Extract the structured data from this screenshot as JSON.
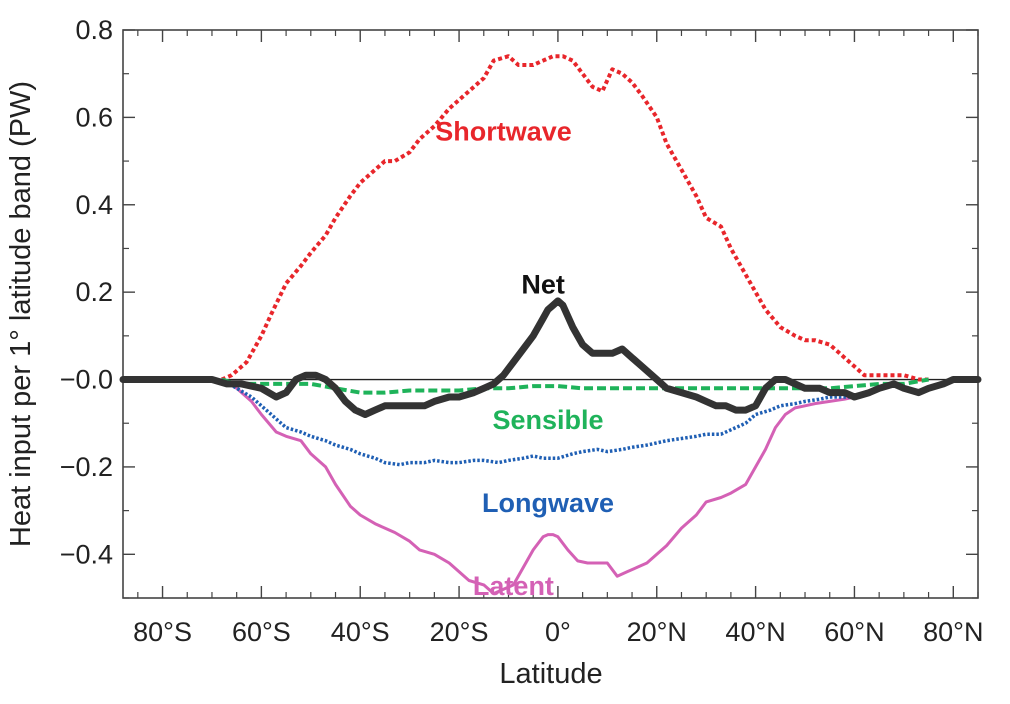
{
  "chart_data": {
    "type": "line",
    "xlabel": "Latitude",
    "ylabel": "Heat input per 1° latitude band (PW)",
    "xlim": [
      -88,
      85
    ],
    "ylim": [
      -0.5,
      0.8
    ],
    "x_ticks": [
      -80,
      -60,
      -40,
      -20,
      0,
      20,
      40,
      60,
      80
    ],
    "x_tick_labels": [
      "80°S",
      "60°S",
      "40°S",
      "20°S",
      "0°",
      "20°N",
      "40°N",
      "60°N",
      "80°N"
    ],
    "y_ticks": [
      -0.4,
      -0.2,
      0.0,
      0.2,
      0.4,
      0.6,
      0.8
    ],
    "y_tick_labels": [
      "−0.4",
      "−0.2",
      "−0.0",
      "0.2",
      "0.4",
      "0.6",
      "0.8"
    ],
    "zero_line": true,
    "grid": false,
    "series": [
      {
        "name": "Shortwave",
        "color": "#e8262b",
        "style": "dotted",
        "label_at": [
          -11,
          0.57
        ],
        "x": [
          -68,
          -66,
          -63,
          -60,
          -58,
          -55,
          -52,
          -50,
          -47,
          -45,
          -42,
          -40,
          -38,
          -35,
          -33,
          -30,
          -28,
          -25,
          -22,
          -20,
          -18,
          -15,
          -13,
          -10,
          -8,
          -5,
          -3,
          -1,
          1,
          3,
          5,
          7,
          9,
          11,
          13,
          15,
          17,
          20,
          22,
          25,
          28,
          30,
          33,
          35,
          38,
          40,
          42,
          45,
          48,
          50,
          52,
          55,
          57,
          60,
          62,
          65,
          68,
          70,
          73,
          75
        ],
        "y": [
          0.0,
          0.01,
          0.04,
          0.1,
          0.15,
          0.22,
          0.26,
          0.29,
          0.33,
          0.37,
          0.42,
          0.45,
          0.47,
          0.5,
          0.5,
          0.52,
          0.55,
          0.58,
          0.62,
          0.64,
          0.66,
          0.69,
          0.73,
          0.74,
          0.72,
          0.72,
          0.73,
          0.74,
          0.74,
          0.73,
          0.7,
          0.67,
          0.66,
          0.71,
          0.7,
          0.68,
          0.65,
          0.6,
          0.54,
          0.48,
          0.42,
          0.37,
          0.35,
          0.3,
          0.24,
          0.2,
          0.16,
          0.12,
          0.1,
          0.09,
          0.09,
          0.08,
          0.06,
          0.03,
          0.01,
          0.01,
          0.01,
          0.01,
          0.0,
          0.0
        ]
      },
      {
        "name": "Net",
        "color": "#333333",
        "style": "solid",
        "label_at": [
          -3,
          0.22
        ],
        "x": [
          -88,
          -80,
          -70,
          -67,
          -64,
          -60,
          -57,
          -55,
          -53,
          -51,
          -49,
          -47,
          -45,
          -43,
          -41,
          -39,
          -37,
          -35,
          -33,
          -31,
          -29,
          -27,
          -25,
          -22,
          -20,
          -17,
          -15,
          -13,
          -11,
          -9,
          -7,
          -5,
          -3,
          -2,
          -1,
          0,
          1,
          3,
          5,
          7,
          9,
          11,
          13,
          15,
          17,
          20,
          22,
          25,
          28,
          30,
          32,
          34,
          36,
          38,
          40,
          42,
          44,
          46,
          48,
          50,
          53,
          55,
          58,
          60,
          63,
          65,
          68,
          70,
          73,
          75,
          78,
          80,
          85
        ],
        "y": [
          0.0,
          0.0,
          0.0,
          -0.01,
          -0.01,
          -0.02,
          -0.04,
          -0.03,
          0.0,
          0.01,
          0.01,
          0.0,
          -0.02,
          -0.05,
          -0.07,
          -0.08,
          -0.07,
          -0.06,
          -0.06,
          -0.06,
          -0.06,
          -0.06,
          -0.05,
          -0.04,
          -0.04,
          -0.03,
          -0.02,
          -0.01,
          0.01,
          0.04,
          0.07,
          0.1,
          0.14,
          0.16,
          0.17,
          0.18,
          0.17,
          0.12,
          0.08,
          0.06,
          0.06,
          0.06,
          0.07,
          0.05,
          0.03,
          0.0,
          -0.02,
          -0.03,
          -0.04,
          -0.05,
          -0.06,
          -0.06,
          -0.07,
          -0.07,
          -0.06,
          -0.02,
          0.0,
          0.0,
          -0.01,
          -0.02,
          -0.02,
          -0.03,
          -0.03,
          -0.04,
          -0.03,
          -0.02,
          -0.01,
          -0.02,
          -0.03,
          -0.02,
          -0.01,
          0.0,
          0.0
        ]
      },
      {
        "name": "Sensible",
        "color": "#1fb35a",
        "style": "dashed",
        "label_at": [
          -2,
          -0.09
        ],
        "x": [
          -68,
          -65,
          -60,
          -55,
          -50,
          -45,
          -40,
          -35,
          -30,
          -25,
          -20,
          -15,
          -10,
          -5,
          0,
          5,
          10,
          15,
          20,
          25,
          30,
          35,
          40,
          45,
          50,
          55,
          60,
          65,
          70,
          75
        ],
        "y": [
          0.0,
          -0.01,
          -0.01,
          -0.01,
          -0.01,
          -0.02,
          -0.03,
          -0.03,
          -0.025,
          -0.025,
          -0.025,
          -0.02,
          -0.02,
          -0.015,
          -0.015,
          -0.02,
          -0.02,
          -0.02,
          -0.02,
          -0.02,
          -0.02,
          -0.02,
          -0.02,
          -0.02,
          -0.02,
          -0.02,
          -0.015,
          -0.01,
          -0.01,
          0.0
        ]
      },
      {
        "name": "Longwave",
        "color": "#1f5fb4",
        "style": "dotted",
        "label_at": [
          -2,
          -0.28
        ],
        "x": [
          -68,
          -65,
          -62,
          -60,
          -57,
          -55,
          -52,
          -50,
          -47,
          -45,
          -42,
          -40,
          -37,
          -35,
          -32,
          -30,
          -27,
          -25,
          -22,
          -20,
          -17,
          -15,
          -12,
          -10,
          -7,
          -5,
          -3,
          0,
          3,
          5,
          8,
          10,
          13,
          15,
          18,
          20,
          22,
          25,
          28,
          30,
          33,
          35,
          38,
          40,
          43,
          45,
          48,
          50,
          53,
          55,
          57,
          60
        ],
        "y": [
          0.0,
          -0.02,
          -0.04,
          -0.06,
          -0.09,
          -0.11,
          -0.12,
          -0.13,
          -0.14,
          -0.15,
          -0.16,
          -0.17,
          -0.18,
          -0.19,
          -0.195,
          -0.19,
          -0.19,
          -0.185,
          -0.19,
          -0.19,
          -0.185,
          -0.185,
          -0.19,
          -0.185,
          -0.18,
          -0.175,
          -0.18,
          -0.18,
          -0.17,
          -0.165,
          -0.16,
          -0.165,
          -0.16,
          -0.155,
          -0.15,
          -0.145,
          -0.14,
          -0.135,
          -0.13,
          -0.125,
          -0.125,
          -0.115,
          -0.1,
          -0.08,
          -0.07,
          -0.06,
          -0.055,
          -0.05,
          -0.045,
          -0.04,
          -0.04,
          -0.04
        ]
      },
      {
        "name": "Latent",
        "color": "#d461b5",
        "style": "solid",
        "label_at": [
          -9,
          -0.47
        ],
        "x": [
          -68,
          -65,
          -62,
          -60,
          -57,
          -55,
          -52,
          -50,
          -47,
          -45,
          -42,
          -40,
          -37,
          -35,
          -33,
          -30,
          -28,
          -25,
          -22,
          -20,
          -18,
          -15,
          -13,
          -11,
          -9,
          -7,
          -5,
          -3,
          -2,
          -1,
          0,
          2,
          4,
          6,
          8,
          10,
          12,
          14,
          16,
          18,
          20,
          22,
          25,
          28,
          30,
          33,
          35,
          38,
          40,
          42,
          44,
          46,
          48,
          50,
          52,
          55,
          58,
          60
        ],
        "y": [
          0.0,
          -0.02,
          -0.05,
          -0.08,
          -0.12,
          -0.13,
          -0.14,
          -0.17,
          -0.2,
          -0.24,
          -0.29,
          -0.31,
          -0.33,
          -0.34,
          -0.35,
          -0.37,
          -0.39,
          -0.4,
          -0.42,
          -0.44,
          -0.46,
          -0.47,
          -0.49,
          -0.48,
          -0.47,
          -0.43,
          -0.39,
          -0.36,
          -0.355,
          -0.355,
          -0.36,
          -0.39,
          -0.415,
          -0.42,
          -0.42,
          -0.42,
          -0.45,
          -0.44,
          -0.43,
          -0.42,
          -0.4,
          -0.38,
          -0.34,
          -0.31,
          -0.28,
          -0.27,
          -0.26,
          -0.24,
          -0.2,
          -0.16,
          -0.11,
          -0.08,
          -0.065,
          -0.06,
          -0.055,
          -0.05,
          -0.045,
          -0.04
        ]
      }
    ]
  }
}
